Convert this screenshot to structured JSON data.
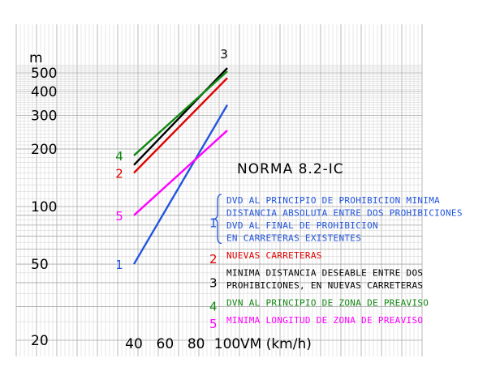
{
  "chart_data": {
    "type": "line",
    "title": "NORMA 8.2-IC",
    "ylabel": "m",
    "xlabel": "VM (km/h)",
    "y_scale": "log",
    "ylim": [
      20,
      550
    ],
    "xlim": [
      30,
      120
    ],
    "y_ticks": [
      "500",
      "400",
      "300",
      "200",
      "100",
      "50",
      "20"
    ],
    "x_ticks": [
      "40",
      "60",
      "80",
      "100"
    ],
    "grid": true,
    "series": [
      {
        "name": "1",
        "color": "#2255dd",
        "x": [
          40,
          100
        ],
        "y": [
          50,
          340
        ]
      },
      {
        "name": "2",
        "color": "#e00000",
        "x": [
          40,
          100
        ],
        "y": [
          150,
          470
        ]
      },
      {
        "name": "3",
        "color": "#000000",
        "x": [
          40,
          100
        ],
        "y": [
          165,
          530
        ]
      },
      {
        "name": "4",
        "color": "#118811",
        "x": [
          40,
          100
        ],
        "y": [
          185,
          510
        ]
      },
      {
        "name": "5",
        "color": "#ff00ff",
        "x": [
          40,
          100
        ],
        "y": [
          90,
          250
        ]
      }
    ],
    "legend": [
      {
        "key": "1",
        "color": "#2255dd",
        "lines": [
          "DVD AL PRINCIPIO DE PROHIBICION MINIMA",
          "DISTANCIA ABSOLUTA ENTRE DOS PROHIBICIONES",
          "DVD AL FINAL DE PROHIBICION",
          "EN CARRETERAS EXISTENTES"
        ]
      },
      {
        "key": "2",
        "color": "#e00000",
        "lines": [
          "NUEVAS CARRETERAS"
        ]
      },
      {
        "key": "3",
        "color": "#000000",
        "lines": [
          "MINIMA DISTANCIA DESEABLE ENTRE DOS",
          "PROHIBICIONES, EN NUEVAS CARRETERAS"
        ]
      },
      {
        "key": "4",
        "color": "#118811",
        "lines": [
          "DVN AL PRINCIPIO DE ZONA DE PREAVISO"
        ]
      },
      {
        "key": "5",
        "color": "#ff00ff",
        "lines": [
          "MINIMA LONGITUD DE ZONA DE PREAVISO"
        ]
      }
    ]
  }
}
